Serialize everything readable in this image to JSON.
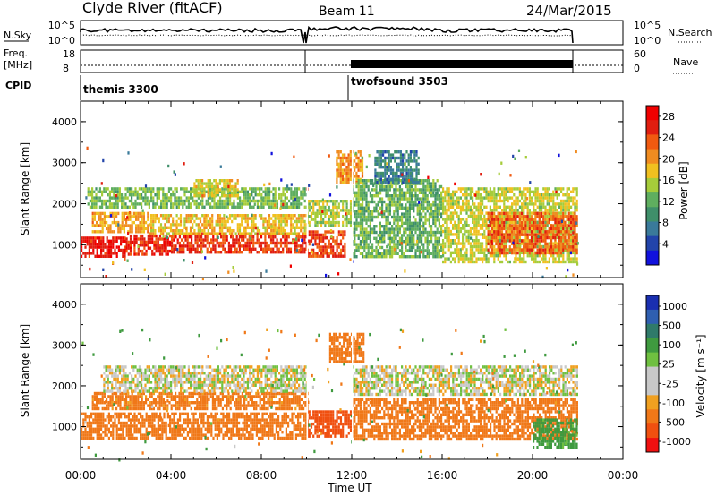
{
  "header": {
    "station": "Clyde River (fitACF)",
    "beam": "Beam 11",
    "date": "24/Mar/2015"
  },
  "strip_labels": {
    "nsky": "N.Sky",
    "nsearch": "N.Search",
    "freq_line1": "Freq.",
    "freq_line2": "[MHz]",
    "nave": "Nave",
    "cpid": "CPID",
    "noise_left_top": "10^5",
    "noise_left_bottom": "10^0",
    "noise_right_top": "10^5",
    "noise_right_bottom": "10^0",
    "freq_top": "18",
    "freq_bottom": "8",
    "nave_top": "60",
    "nave_bottom": "0",
    "mode1": "themis 3300",
    "mode2": "twofsound 3503"
  },
  "colors": {
    "power_scale": [
      "#1111dd",
      "#2244aa",
      "#3a7a9a",
      "#3f8f6a",
      "#5fae5f",
      "#a6cc3a",
      "#f0c020",
      "#f08c20",
      "#f05a10",
      "#e01e10",
      "#f00000"
    ],
    "velocity_scale": [
      "#1a2fb0",
      "#2f5fb0",
      "#2f7a6a",
      "#3f9a3f",
      "#6fc040",
      "#c8c8c8",
      "#c8c8c8",
      "#f0a020",
      "#f07818",
      "#f05010",
      "#f01010"
    ]
  },
  "chart_data": [
    {
      "type": "heatmap",
      "name": "power",
      "ylabel": "Slant Range [km]",
      "yticks": [
        "1000",
        "2000",
        "3000",
        "4000"
      ],
      "ylim": [
        200,
        4500
      ],
      "colorbar_label": "Power [dB]",
      "colorbar_ticks": [
        "4",
        "8",
        "12",
        "16",
        "20",
        "24",
        "28"
      ],
      "colorbar_range": [
        0,
        30
      ],
      "xlim_hours": [
        0,
        24
      ],
      "data_end_hours": 22,
      "bands": [
        {
          "x": [
            0.0,
            2.0
          ],
          "range": [
            700,
            1200
          ],
          "level": 28
        },
        {
          "x": [
            2.0,
            4.0
          ],
          "range": [
            750,
            1250
          ],
          "level": 27
        },
        {
          "x": [
            4.0,
            7.0
          ],
          "range": [
            800,
            1300
          ],
          "level": 26
        },
        {
          "x": [
            7.0,
            10.0
          ],
          "range": [
            850,
            1300
          ],
          "level": 26
        },
        {
          "x": [
            10.0,
            11.7
          ],
          "range": [
            750,
            1350
          ],
          "level": 25
        },
        {
          "x": [
            0.5,
            3.0
          ],
          "range": [
            1300,
            1800
          ],
          "level": 20
        },
        {
          "x": [
            3.0,
            10.0
          ],
          "range": [
            1300,
            1750
          ],
          "level": 18
        },
        {
          "x": [
            0.3,
            10.0
          ],
          "range": [
            1900,
            2400
          ],
          "level": 13
        },
        {
          "x": [
            5.0,
            7.0
          ],
          "range": [
            2200,
            2600
          ],
          "level": 17
        },
        {
          "x": [
            10.0,
            12.0
          ],
          "range": [
            1500,
            2100
          ],
          "level": 15
        },
        {
          "x": [
            11.3,
            12.5
          ],
          "range": [
            2500,
            3300
          ],
          "level": 21
        },
        {
          "x": [
            12.0,
            16.0
          ],
          "range": [
            700,
            2600
          ],
          "level": 12
        },
        {
          "x": [
            16.0,
            22.0
          ],
          "range": [
            600,
            2400
          ],
          "level": 16
        },
        {
          "x": [
            18.0,
            22.0
          ],
          "range": [
            800,
            1800
          ],
          "level": 24
        },
        {
          "x": [
            13.0,
            15.0
          ],
          "range": [
            2500,
            3300
          ],
          "level": 7
        }
      ]
    },
    {
      "type": "heatmap",
      "name": "velocity",
      "ylabel": "Slant Range [km]",
      "yticks": [
        "1000",
        "2000",
        "3000",
        "4000"
      ],
      "ylim": [
        200,
        4500
      ],
      "colorbar_label": "Velocity [m s⁻¹]",
      "colorbar_ticks": [
        "1000",
        "500",
        "100",
        "25",
        "-25",
        "-100",
        "-500",
        "-1000"
      ],
      "xlim_hours": [
        0,
        24
      ],
      "data_end_hours": 22,
      "bands": [
        {
          "x": [
            0.0,
            10.0
          ],
          "range": [
            750,
            1350
          ],
          "level": -300
        },
        {
          "x": [
            0.5,
            10.0
          ],
          "range": [
            1450,
            1850
          ],
          "level": -150
        },
        {
          "x": [
            1.0,
            10.0
          ],
          "range": [
            1900,
            2500
          ],
          "level": 0
        },
        {
          "x": [
            10.0,
            12.0
          ],
          "range": [
            800,
            1400
          ],
          "level": -600
        },
        {
          "x": [
            11.0,
            12.5
          ],
          "range": [
            2600,
            3300
          ],
          "level": -400
        },
        {
          "x": [
            12.0,
            22.0
          ],
          "range": [
            1800,
            2500
          ],
          "level": 0
        },
        {
          "x": [
            12.0,
            22.0
          ],
          "range": [
            700,
            1700
          ],
          "level": -250
        },
        {
          "x": [
            20.0,
            22.0
          ],
          "range": [
            500,
            1200
          ],
          "level": 150
        }
      ]
    }
  ],
  "xaxis": {
    "ticks": [
      "00:00",
      "04:00",
      "08:00",
      "12:00",
      "16:00",
      "20:00",
      "00:00"
    ],
    "label": "Time UT"
  }
}
